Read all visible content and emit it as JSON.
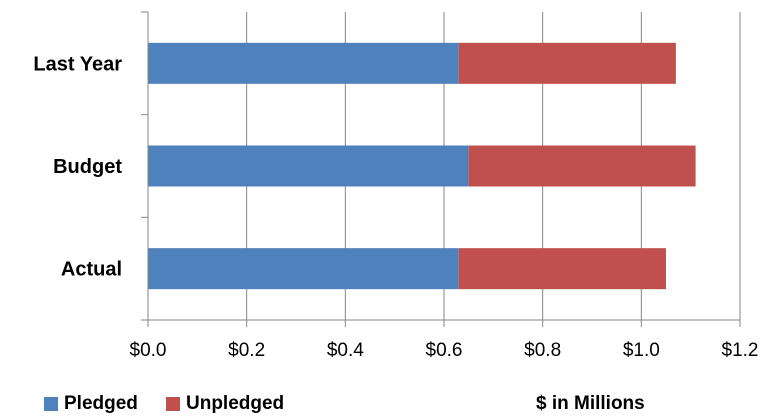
{
  "chart_data": {
    "type": "bar",
    "orientation": "horizontal",
    "stacked": true,
    "categories": [
      "Last Year",
      "Budget",
      "Actual"
    ],
    "series": [
      {
        "name": "Pledged",
        "values": [
          0.63,
          0.65,
          0.63
        ],
        "color": "#4F81BD"
      },
      {
        "name": "Unpledged",
        "values": [
          0.44,
          0.46,
          0.42
        ],
        "color": "#C0504D"
      }
    ],
    "xlim": [
      0,
      1.2
    ],
    "xticks": [
      0,
      0.2,
      0.4,
      0.6,
      0.8,
      1.0,
      1.2
    ],
    "xtick_labels": [
      "$0.0",
      "$0.2",
      "$0.4",
      "$0.6",
      "$0.8",
      "$1.0",
      "$1.2"
    ],
    "grid": "vertical",
    "legend_position": "bottom-left",
    "unit_label": "$ in Millions"
  }
}
